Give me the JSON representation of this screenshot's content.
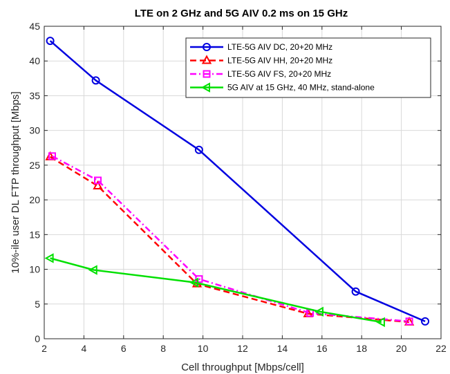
{
  "chart_data": {
    "type": "line",
    "title": "LTE on 2 GHz and 5G AIV 0.2 ms on 15 GHz",
    "xlabel": "Cell throughput [Mbps/cell]",
    "ylabel": "10%-ile user DL FTP throughput [Mbps]",
    "xlim": [
      2,
      22
    ],
    "ylim": [
      0,
      45
    ],
    "xticks": [
      2,
      4,
      6,
      8,
      10,
      12,
      14,
      16,
      18,
      20,
      22
    ],
    "yticks": [
      0,
      5,
      10,
      15,
      20,
      25,
      30,
      35,
      40,
      45
    ],
    "grid": true,
    "legend_position": "top-right",
    "series": [
      {
        "name": "LTE-5G AIV DC, 20+20 MHz",
        "color": "#0000e0",
        "line_style": "solid",
        "marker": "circle",
        "x": [
          2.3,
          4.6,
          9.8,
          17.7,
          21.2
        ],
        "y": [
          42.9,
          37.2,
          27.2,
          6.8,
          2.5
        ]
      },
      {
        "name": "LTE-5G AIV HH, 20+20 MHz",
        "color": "#ff0000",
        "line_style": "dashed",
        "marker": "triangle-up",
        "x": [
          2.3,
          4.7,
          9.7,
          15.3,
          20.4
        ],
        "y": [
          26.2,
          22.0,
          7.9,
          3.6,
          2.4
        ]
      },
      {
        "name": "LTE-5G AIV FS, 20+20 MHz",
        "color": "#ff00ff",
        "line_style": "dashdot",
        "marker": "square",
        "x": [
          2.4,
          4.7,
          9.8,
          15.4,
          20.4
        ],
        "y": [
          26.3,
          22.8,
          8.6,
          3.7,
          2.5
        ]
      },
      {
        "name": "5G AIV at 15 GHz, 40 MHz, stand-alone",
        "color": "#00e000",
        "line_style": "solid",
        "marker": "triangle-left",
        "x": [
          2.3,
          4.5,
          9.6,
          15.9,
          19.0
        ],
        "y": [
          11.6,
          9.9,
          8.1,
          3.9,
          2.4
        ]
      }
    ]
  }
}
